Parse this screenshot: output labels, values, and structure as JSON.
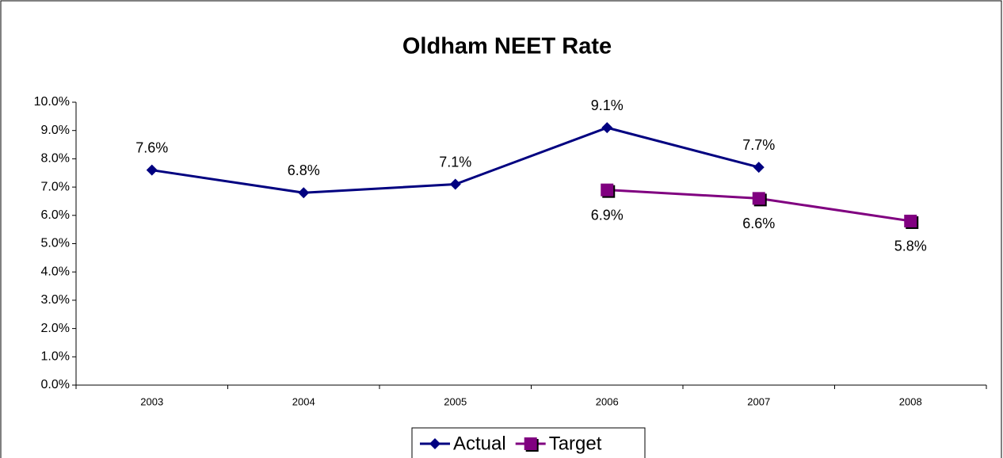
{
  "chart_data": {
    "type": "line",
    "title": "Oldham NEET Rate",
    "categories": [
      "2003",
      "2004",
      "2005",
      "2006",
      "2007",
      "2008"
    ],
    "series": [
      {
        "name": "Actual",
        "color": "#000080",
        "marker": "diamond",
        "values": [
          7.6,
          6.8,
          7.1,
          9.1,
          7.7,
          null
        ],
        "value_labels": [
          "7.6%",
          "6.8%",
          "7.1%",
          "9.1%",
          "7.7%",
          null
        ]
      },
      {
        "name": "Target",
        "color": "#800080",
        "marker": "square",
        "values": [
          null,
          null,
          null,
          6.9,
          6.6,
          5.8
        ],
        "value_labels": [
          null,
          null,
          null,
          "6.9%",
          "6.6%",
          "5.8%"
        ]
      }
    ],
    "ylim": [
      0,
      10
    ],
    "yticks": [
      {
        "value": 0,
        "label": "0.0%"
      },
      {
        "value": 1,
        "label": "1.0%"
      },
      {
        "value": 2,
        "label": "2.0%"
      },
      {
        "value": 3,
        "label": "3.0%"
      },
      {
        "value": 4,
        "label": "4.0%"
      },
      {
        "value": 5,
        "label": "5.0%"
      },
      {
        "value": 6,
        "label": "6.0%"
      },
      {
        "value": 7,
        "label": "7.0%"
      },
      {
        "value": 8,
        "label": "8.0%"
      },
      {
        "value": 9,
        "label": "9.0%"
      },
      {
        "value": 10,
        "label": "10.0%"
      }
    ],
    "grid": false,
    "legend": "bottom"
  }
}
